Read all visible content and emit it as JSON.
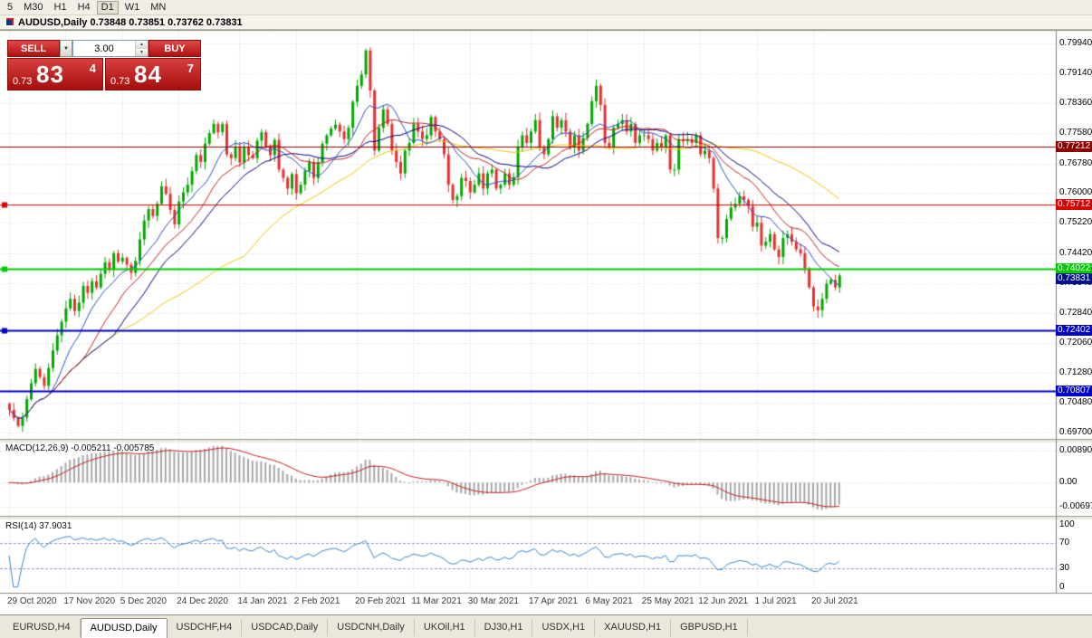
{
  "app": {
    "toolbar": {
      "timeframes": [
        {
          "label": "5",
          "active": false
        },
        {
          "label": "M30",
          "active": false
        },
        {
          "label": "H1",
          "active": false
        },
        {
          "label": "H4",
          "active": false
        },
        {
          "label": "D1",
          "active": true
        },
        {
          "label": "W1",
          "active": false
        },
        {
          "label": "MN",
          "active": false
        }
      ]
    },
    "caption": {
      "title": "AUDUSD,Daily 0.73848 0.73851 0.73762 0.73831"
    },
    "trade_panel": {
      "sell_label": "SELL",
      "buy_label": "BUY",
      "volume": "3.00",
      "sell_price": {
        "prefix": "0.73",
        "big": "83",
        "sup": "4"
      },
      "buy_price": {
        "prefix": "0.73",
        "big": "84",
        "sup": "7"
      }
    },
    "tabs": [
      {
        "label": "EURUSD,H4",
        "active": false
      },
      {
        "label": "AUDUSD,Daily",
        "active": true
      },
      {
        "label": "USDCHF,H4",
        "active": false
      },
      {
        "label": "USDCAD,Daily",
        "active": false
      },
      {
        "label": "USDCNH,Daily",
        "active": false
      },
      {
        "label": "UKOil,H1",
        "active": false
      },
      {
        "label": "DJ30,H1",
        "active": false
      },
      {
        "label": "USDX,H1",
        "active": false
      },
      {
        "label": "XAUUSD,H1",
        "active": false
      },
      {
        "label": "GBPUSD,H1",
        "active": false
      }
    ]
  },
  "icons": {
    "dropdown": "▼",
    "spin_up": "▲",
    "spin_down": "▼"
  },
  "indicators": {
    "macd": {
      "label": "MACD(12,26,9) -0.005211 -0.005785",
      "params": [
        12,
        26,
        9
      ],
      "values": {
        "main": -0.005211,
        "signal": -0.005785
      },
      "axis": [
        {
          "v": 0.0089,
          "label": "0.00890"
        },
        {
          "v": 0.0,
          "label": "0.00"
        },
        {
          "v": -0.00697,
          "label": "-0.00697"
        }
      ]
    },
    "rsi": {
      "label": "RSI(14) 37.9031",
      "period": 14,
      "value": 37.9031,
      "levels": [
        70,
        30
      ],
      "axis": [
        {
          "v": 100,
          "label": "100"
        },
        {
          "v": 70,
          "label": "70"
        },
        {
          "v": 30,
          "label": "30"
        },
        {
          "v": 0,
          "label": "0"
        }
      ]
    }
  },
  "chart_data": {
    "type": "candlestick",
    "title": "AUDUSD,Daily",
    "symbol": "AUDUSD",
    "timeframe": "Daily",
    "ylim": [
      0.6956,
      0.8027
    ],
    "price_axis": [
      {
        "v": 0.7994,
        "label": "0.79940"
      },
      {
        "v": 0.7914,
        "label": "0.79140"
      },
      {
        "v": 0.7836,
        "label": "0.78360"
      },
      {
        "v": 0.7758,
        "label": "0.77580"
      },
      {
        "v": 0.7678,
        "label": "0.76780"
      },
      {
        "v": 0.76,
        "label": "0.76000"
      },
      {
        "v": 0.7522,
        "label": "0.75220"
      },
      {
        "v": 0.7442,
        "label": "0.74420"
      },
      {
        "v": 0.7364,
        "label": "0.73640"
      },
      {
        "v": 0.7284,
        "label": "0.72840"
      },
      {
        "v": 0.7206,
        "label": "0.72060"
      },
      {
        "v": 0.7128,
        "label": "0.71280"
      },
      {
        "v": 0.7048,
        "label": "0.70480"
      },
      {
        "v": 0.697,
        "label": "0.69700"
      }
    ],
    "open_first": 0.7046,
    "closes": [
      0.703,
      0.7008,
      0.6988,
      0.701,
      0.7058,
      0.71,
      0.7138,
      0.7116,
      0.7093,
      0.714,
      0.7186,
      0.7226,
      0.7262,
      0.7297,
      0.7322,
      0.729,
      0.7312,
      0.7356,
      0.7338,
      0.7368,
      0.7352,
      0.7388,
      0.7418,
      0.7398,
      0.7442,
      0.742,
      0.743,
      0.7412,
      0.739,
      0.7422,
      0.7478,
      0.7528,
      0.7558,
      0.754,
      0.7572,
      0.7618,
      0.7598,
      0.7556,
      0.7518,
      0.7578,
      0.7602,
      0.7622,
      0.7658,
      0.77,
      0.7682,
      0.773,
      0.7758,
      0.7782,
      0.776,
      0.7782,
      0.7702,
      0.7692,
      0.7722,
      0.768,
      0.772,
      0.77,
      0.7692,
      0.7738,
      0.776,
      0.7722,
      0.77,
      0.774,
      0.7662,
      0.764,
      0.7612,
      0.765,
      0.76,
      0.7622,
      0.7658,
      0.7682,
      0.764,
      0.7682,
      0.773,
      0.7752,
      0.777,
      0.778,
      0.7762,
      0.7742,
      0.7772,
      0.784,
      0.7882,
      0.7912,
      0.7975,
      0.787,
      0.7712,
      0.7772,
      0.782,
      0.7782,
      0.7712,
      0.7682,
      0.7652,
      0.7712,
      0.7732,
      0.7782,
      0.7762,
      0.7742,
      0.7752,
      0.78,
      0.7762,
      0.7742,
      0.7702,
      0.7622,
      0.7582,
      0.7592,
      0.764,
      0.7632,
      0.7602,
      0.7622,
      0.7652,
      0.7612,
      0.7652,
      0.7662,
      0.7612,
      0.7622,
      0.7652,
      0.7622,
      0.7642,
      0.7722,
      0.7752,
      0.7732,
      0.7762,
      0.7792,
      0.7722,
      0.7702,
      0.7742,
      0.7802,
      0.7772,
      0.7792,
      0.7762,
      0.7722,
      0.7752,
      0.7712,
      0.7745,
      0.7782,
      0.7842,
      0.7882,
      0.7832,
      0.7732,
      0.7722,
      0.7772,
      0.7782,
      0.7792,
      0.7762,
      0.7782,
      0.7732,
      0.7752,
      0.7752,
      0.7742,
      0.7712,
      0.7732,
      0.7722,
      0.7752,
      0.7662,
      0.7662,
      0.7742,
      0.7736,
      0.7742,
      0.7732,
      0.7752,
      0.7702,
      0.7712,
      0.7692,
      0.7612,
      0.7482,
      0.7482,
      0.7532,
      0.7562,
      0.7572,
      0.7592,
      0.7582,
      0.7566,
      0.7512,
      0.7522,
      0.7462,
      0.7472,
      0.7492,
      0.7452,
      0.7432,
      0.7482,
      0.7492,
      0.7472,
      0.7452,
      0.7442,
      0.7402,
      0.7352,
      0.7302,
      0.7292,
      0.7322,
      0.7362,
      0.7372,
      0.7352,
      0.7383
    ],
    "date_ticks": [
      {
        "i": 0,
        "label": "29 Oct 2020"
      },
      {
        "i": 13,
        "label": "17 Nov 2020"
      },
      {
        "i": 26,
        "label": "5 Dec 2020"
      },
      {
        "i": 39,
        "label": "24 Dec 2020"
      },
      {
        "i": 53,
        "label": "14 Jan 2021"
      },
      {
        "i": 66,
        "label": "2 Feb 2021"
      },
      {
        "i": 80,
        "label": "20 Feb 2021"
      },
      {
        "i": 93,
        "label": "11 Mar 2021"
      },
      {
        "i": 106,
        "label": "30 Mar 2021"
      },
      {
        "i": 120,
        "label": "17 Apr 2021"
      },
      {
        "i": 133,
        "label": "6 May 2021"
      },
      {
        "i": 146,
        "label": "25 May 2021"
      },
      {
        "i": 159,
        "label": "12 Jun 2021"
      },
      {
        "i": 172,
        "label": "1 Jul 2021"
      },
      {
        "i": 185,
        "label": "20 Jul 2021"
      }
    ],
    "moving_averages": [
      {
        "period": 55,
        "color": "#f0c808"
      },
      {
        "period": 25,
        "color": "#000080"
      },
      {
        "period": 18,
        "color": "#c22121"
      },
      {
        "period": 10,
        "color": "#2a52be"
      }
    ],
    "hlines": [
      {
        "price": 0.77212,
        "label": "0.77212",
        "color": "#8b0000",
        "width": 1,
        "handle": false
      },
      {
        "price": 0.75712,
        "label": "0.75712",
        "color": "#dd0000",
        "width": 1,
        "handle": true
      },
      {
        "price": 0.74022,
        "label": "0.74022",
        "color": "#00cc00",
        "width": 2,
        "handle": true
      },
      {
        "price": 0.72402,
        "label": "0.72402",
        "color": "#0000c8",
        "width": 2,
        "handle": true
      },
      {
        "price": 0.70807,
        "label": "0.70807",
        "color": "#0000c8",
        "width": 2,
        "handle": false
      }
    ],
    "bid": {
      "price": 0.73831,
      "label": "0.73831",
      "color": "#00138c"
    },
    "colors": {
      "up": "#00a800",
      "down": "#e53030",
      "grid": "#d8d8d8",
      "macd_hist": "#a8a8a8",
      "macd_signal": "#c81e1e",
      "rsi_line": "#3e86c6",
      "rsi_level": "#9494cc",
      "separator": "#9a968a"
    }
  }
}
